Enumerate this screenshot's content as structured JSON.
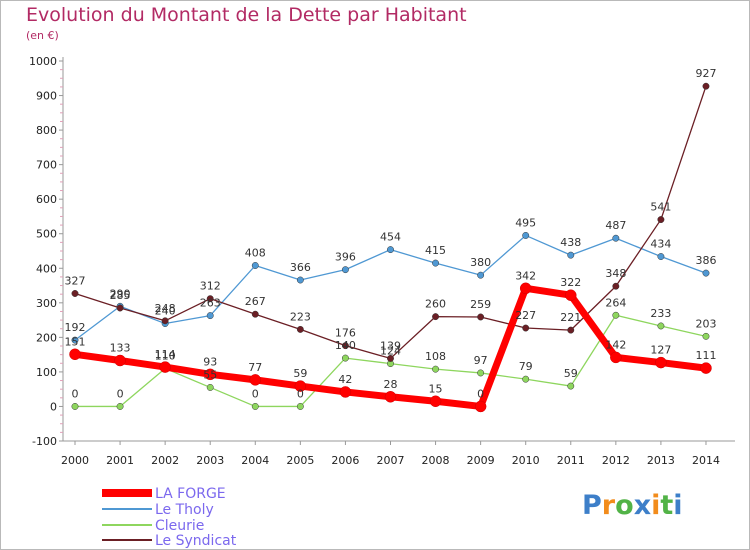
{
  "chart_data": {
    "type": "line",
    "title": "Evolution du Montant de la Dette par Habitant",
    "subtitle": "(en €)",
    "xlabel": "",
    "ylabel": "",
    "ylim": [
      -100,
      1000
    ],
    "yticks": [
      -100,
      0,
      100,
      200,
      300,
      400,
      500,
      600,
      700,
      800,
      900,
      1000
    ],
    "x": [
      "2000",
      "2001",
      "2002",
      "2003",
      "2004",
      "2005",
      "2006",
      "2007",
      "2008",
      "2009",
      "2010",
      "2011",
      "2012",
      "2013",
      "2014"
    ],
    "grid": false,
    "legend_position": "bottom-left",
    "series": [
      {
        "name": "LA FORGE",
        "color": "#ff0000",
        "values": [
          151,
          133,
          114,
          93,
          77,
          59,
          42,
          28,
          15,
          0,
          342,
          322,
          142,
          127,
          111
        ]
      },
      {
        "name": "Le Tholy",
        "color": "#4f98d3",
        "values": [
          192,
          290,
          240,
          263,
          408,
          366,
          396,
          454,
          415,
          380,
          495,
          438,
          487,
          434,
          386
        ]
      },
      {
        "name": "Cleurie",
        "color": "#8ed65e",
        "values": [
          0,
          0,
          110,
          55,
          0,
          0,
          140,
          124,
          108,
          97,
          79,
          59,
          264,
          233,
          203
        ]
      },
      {
        "name": "Le Syndicat",
        "color": "#6b1f25",
        "values": [
          327,
          285,
          248,
          312,
          267,
          223,
          176,
          139,
          260,
          259,
          227,
          221,
          348,
          541,
          927
        ]
      }
    ]
  },
  "logo": {
    "letters": [
      "P",
      "r",
      "o",
      "x",
      "i",
      "t",
      "i"
    ],
    "colors": [
      "#3d7fc9",
      "#f28c1c",
      "#52b347",
      "#3d7fc9",
      "#f28c1c",
      "#52b347",
      "#3d7fc9"
    ]
  }
}
